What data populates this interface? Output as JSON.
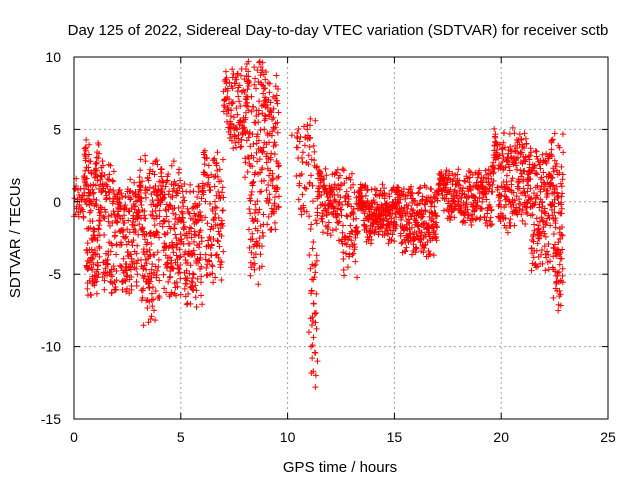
{
  "chart_data": {
    "type": "scatter",
    "title": "Day 125 of 2022, Sidereal Day-to-day VTEC variation (SDTVAR) for receiver sctb",
    "xlabel": "GPS time / hours",
    "ylabel": "SDTVAR / TECUs",
    "xlim": [
      0,
      25
    ],
    "ylim": [
      -15,
      10
    ],
    "xticks": [
      0,
      5,
      10,
      15,
      20,
      25
    ],
    "yticks": [
      -15,
      -10,
      -5,
      0,
      5,
      10
    ],
    "grid": true,
    "marker": "+",
    "color": "#ff0000",
    "series": [
      {
        "name": "SDTVAR",
        "segments": [
          {
            "t0": 0.0,
            "t1": 0.45,
            "center": -0.5,
            "amp": 1.2,
            "jitter": 0.9,
            "n": 25
          },
          {
            "t0": 0.45,
            "t1": 1.2,
            "center": -1.0,
            "amp": 4.0,
            "jitter": 1.5,
            "n": 160
          },
          {
            "t0": 1.2,
            "t1": 2.0,
            "center": -2.0,
            "amp": 3.5,
            "jitter": 1.4,
            "n": 110
          },
          {
            "t0": 2.0,
            "t1": 3.0,
            "center": -2.5,
            "amp": 2.8,
            "jitter": 1.3,
            "n": 150
          },
          {
            "t0": 3.0,
            "t1": 4.0,
            "center": -2.8,
            "amp": 4.5,
            "jitter": 1.6,
            "n": 170
          },
          {
            "t0": 4.0,
            "t1": 5.0,
            "center": -2.0,
            "amp": 3.5,
            "jitter": 1.4,
            "n": 150
          },
          {
            "t0": 5.0,
            "t1": 6.0,
            "center": -3.0,
            "amp": 3.0,
            "jitter": 1.3,
            "n": 140
          },
          {
            "t0": 6.0,
            "t1": 7.0,
            "center": -1.0,
            "amp": 3.5,
            "jitter": 1.3,
            "n": 120
          },
          {
            "t0": 7.0,
            "t1": 8.0,
            "center": 6.5,
            "amp": 2.0,
            "jitter": 1.0,
            "n": 100
          },
          {
            "t0": 8.0,
            "t1": 8.9,
            "center": 2.0,
            "amp": 6.5,
            "jitter": 2.0,
            "n": 160
          },
          {
            "t0": 8.9,
            "t1": 9.6,
            "center": 3.5,
            "amp": 4.0,
            "jitter": 1.6,
            "n": 110
          },
          {
            "t0": 10.4,
            "t1": 11.0,
            "center": 2.0,
            "amp": 2.5,
            "jitter": 1.0,
            "n": 40
          },
          {
            "t0": 11.0,
            "t1": 11.4,
            "center": -3.0,
            "amp": 7.0,
            "jitter": 2.5,
            "n": 60
          },
          {
            "t0": 11.4,
            "t1": 12.4,
            "center": 0.0,
            "amp": 1.5,
            "jitter": 0.9,
            "n": 110
          },
          {
            "t0": 12.4,
            "t1": 13.3,
            "center": -1.5,
            "amp": 2.5,
            "jitter": 1.5,
            "n": 90
          },
          {
            "t0": 13.3,
            "t1": 15.0,
            "center": -0.8,
            "amp": 1.2,
            "jitter": 0.9,
            "n": 230
          },
          {
            "t0": 15.0,
            "t1": 17.0,
            "center": -1.3,
            "amp": 1.5,
            "jitter": 1.0,
            "n": 260
          },
          {
            "t0": 17.0,
            "t1": 19.6,
            "center": 0.3,
            "amp": 1.2,
            "jitter": 0.8,
            "n": 270
          },
          {
            "t0": 19.6,
            "t1": 21.2,
            "center": 1.5,
            "amp": 2.5,
            "jitter": 1.2,
            "n": 220
          },
          {
            "t0": 21.2,
            "t1": 22.3,
            "center": -0.5,
            "amp": 3.0,
            "jitter": 1.6,
            "n": 170
          },
          {
            "t0": 22.3,
            "t1": 22.9,
            "center": -1.5,
            "amp": 4.5,
            "jitter": 1.8,
            "n": 120
          }
        ],
        "isolated_points": [
          [
            11.0,
            -9.0
          ],
          [
            11.1,
            -10.0
          ],
          [
            11.15,
            -10.8
          ],
          [
            11.2,
            -11.7
          ],
          [
            11.3,
            -12.8
          ],
          [
            11.4,
            -11.0
          ],
          [
            0.1,
            1.6
          ],
          [
            10.2,
            4.6
          ],
          [
            11.3,
            5.6
          ]
        ]
      }
    ]
  }
}
